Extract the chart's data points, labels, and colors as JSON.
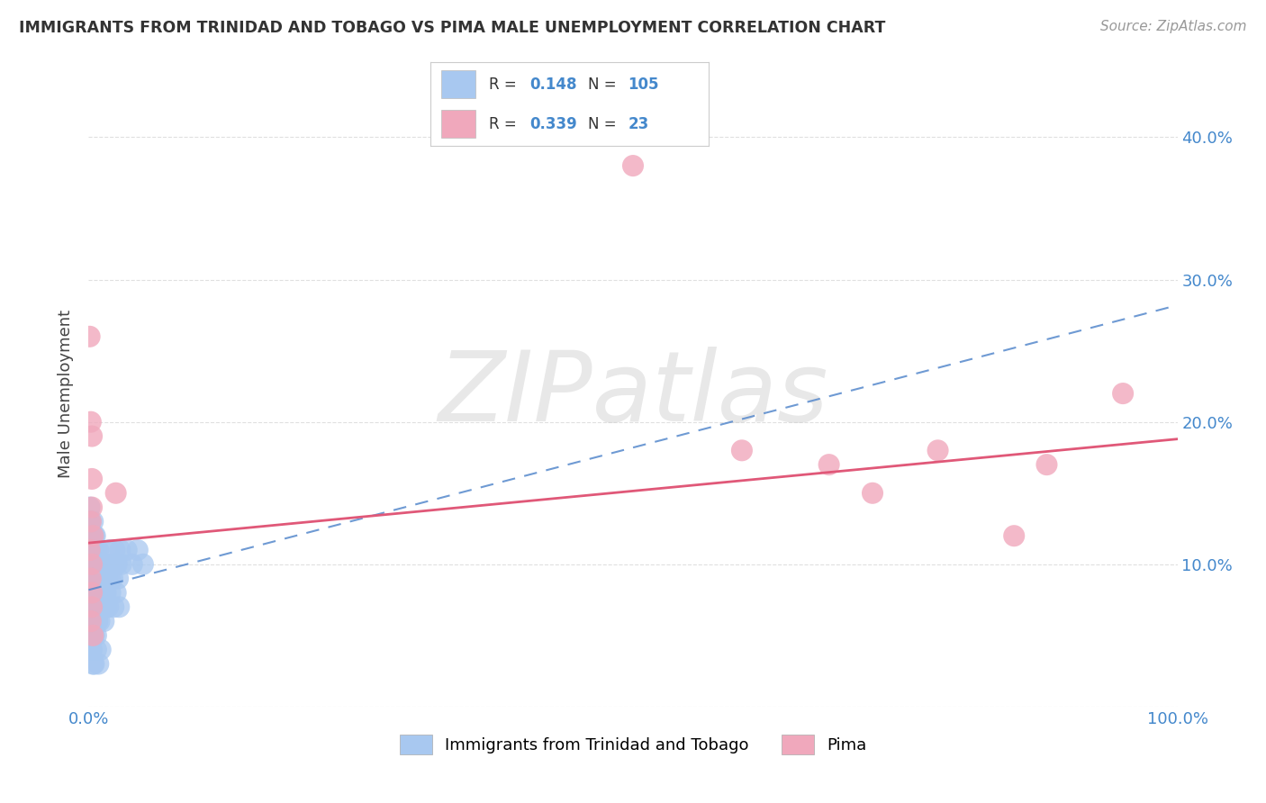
{
  "title": "IMMIGRANTS FROM TRINIDAD AND TOBAGO VS PIMA MALE UNEMPLOYMENT CORRELATION CHART",
  "source": "Source: ZipAtlas.com",
  "ylabel": "Male Unemployment",
  "xlim": [
    0,
    1.0
  ],
  "ylim": [
    0,
    0.44
  ],
  "series1_label": "Immigrants from Trinidad and Tobago",
  "series1_R": "0.148",
  "series1_N": "105",
  "series1_color": "#a8c8f0",
  "series1_line_color": "#5588cc",
  "series2_label": "Pima",
  "series2_R": "0.339",
  "series2_N": "23",
  "series2_color": "#f0a8bc",
  "series2_line_color": "#e05878",
  "watermark": "ZIPatlas",
  "background_color": "#ffffff",
  "grid_color": "#dddddd",
  "blue_x": [
    0.0002,
    0.0003,
    0.0005,
    0.0008,
    0.001,
    0.0012,
    0.0015,
    0.002,
    0.002,
    0.002,
    0.003,
    0.003,
    0.003,
    0.003,
    0.004,
    0.004,
    0.004,
    0.005,
    0.005,
    0.005,
    0.006,
    0.006,
    0.007,
    0.007,
    0.008,
    0.008,
    0.009,
    0.009,
    0.01,
    0.01,
    0.011,
    0.011,
    0.012,
    0.013,
    0.014,
    0.015,
    0.016,
    0.017,
    0.018,
    0.019,
    0.02,
    0.021,
    0.022,
    0.023,
    0.024,
    0.025,
    0.026,
    0.027,
    0.028,
    0.029,
    0.001,
    0.001,
    0.002,
    0.002,
    0.003,
    0.003,
    0.004,
    0.004,
    0.005,
    0.005,
    0.006,
    0.007,
    0.008,
    0.009,
    0.01,
    0.012,
    0.013,
    0.014,
    0.015,
    0.016,
    0.001,
    0.001,
    0.002,
    0.002,
    0.003,
    0.004,
    0.005,
    0.006,
    0.007,
    0.008,
    0.003,
    0.004,
    0.005,
    0.006,
    0.007,
    0.008,
    0.009,
    0.01,
    0.012,
    0.015,
    0.02,
    0.025,
    0.03,
    0.035,
    0.04,
    0.045,
    0.05,
    0.001,
    0.002,
    0.003,
    0.004,
    0.005,
    0.007,
    0.009,
    0.011
  ],
  "blue_y": [
    0.08,
    0.09,
    0.07,
    0.1,
    0.08,
    0.09,
    0.07,
    0.1,
    0.08,
    0.09,
    0.11,
    0.08,
    0.1,
    0.09,
    0.08,
    0.11,
    0.07,
    0.1,
    0.09,
    0.08,
    0.12,
    0.07,
    0.11,
    0.08,
    0.1,
    0.09,
    0.07,
    0.11,
    0.08,
    0.1,
    0.09,
    0.07,
    0.1,
    0.08,
    0.09,
    0.1,
    0.08,
    0.09,
    0.07,
    0.11,
    0.08,
    0.1,
    0.09,
    0.07,
    0.11,
    0.08,
    0.1,
    0.09,
    0.07,
    0.11,
    0.13,
    0.14,
    0.12,
    0.13,
    0.11,
    0.12,
    0.11,
    0.13,
    0.1,
    0.12,
    0.06,
    0.07,
    0.06,
    0.07,
    0.06,
    0.08,
    0.07,
    0.06,
    0.08,
    0.07,
    0.05,
    0.06,
    0.05,
    0.06,
    0.05,
    0.06,
    0.05,
    0.06,
    0.05,
    0.06,
    0.09,
    0.08,
    0.09,
    0.08,
    0.09,
    0.08,
    0.09,
    0.08,
    0.09,
    0.08,
    0.09,
    0.1,
    0.1,
    0.11,
    0.1,
    0.11,
    0.1,
    0.04,
    0.04,
    0.04,
    0.03,
    0.03,
    0.04,
    0.03,
    0.04
  ],
  "pink_x": [
    0.001,
    0.002,
    0.003,
    0.003,
    0.004,
    0.001,
    0.002,
    0.003,
    0.025,
    0.5,
    0.6,
    0.68,
    0.72,
    0.78,
    0.85,
    0.88,
    0.95,
    0.003,
    0.002,
    0.003,
    0.004,
    0.002,
    0.003
  ],
  "pink_y": [
    0.26,
    0.2,
    0.19,
    0.16,
    0.12,
    0.11,
    0.13,
    0.1,
    0.15,
    0.38,
    0.18,
    0.17,
    0.15,
    0.18,
    0.12,
    0.17,
    0.22,
    0.14,
    0.09,
    0.07,
    0.05,
    0.06,
    0.08
  ],
  "blue_trend": [
    0.082,
    0.282
  ],
  "pink_trend": [
    0.115,
    0.188
  ]
}
